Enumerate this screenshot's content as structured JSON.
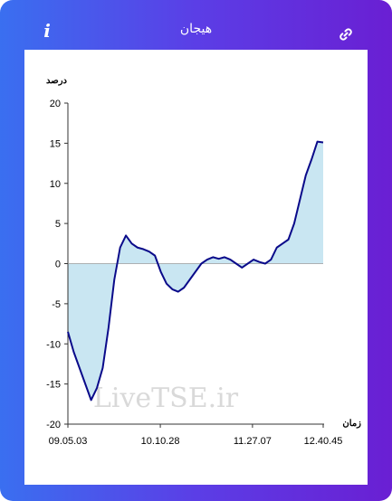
{
  "header": {
    "title": "هیجان",
    "info_icon": "info-icon",
    "link_icon": "link-icon",
    "info_glyph": "i"
  },
  "colors": {
    "line": "#0a0a8a",
    "fill": "#c9e6f2",
    "header_left": "#3a6ff0",
    "header_right": "#6a1fd3"
  },
  "chart_data": {
    "type": "area",
    "title": "",
    "ylabel": "درصد",
    "xlabel": "زمان",
    "ylim": [
      -20,
      20
    ],
    "yticks": [
      "20",
      "15",
      "10",
      "5",
      "0",
      "-5",
      "-10",
      "-15",
      "-20"
    ],
    "x_tick_labels": [
      "09.05.03",
      "10.10.28",
      "11.27.07",
      "12.40.45"
    ],
    "watermark": "LiveTSE.ir",
    "grid": false,
    "series": [
      {
        "values": [
          -8.5,
          -11,
          -13,
          -15,
          -17,
          -15.5,
          -13,
          -8,
          -2,
          2,
          3.5,
          2.5,
          2,
          1.8,
          1.5,
          1,
          -1,
          -2.5,
          -3.2,
          -3.5,
          -3,
          -2,
          -1,
          0,
          0.5,
          0.8,
          0.6,
          0.8,
          0.5,
          0,
          -0.5,
          0,
          0.5,
          0.2,
          0,
          0.5,
          2,
          2.5,
          3,
          5,
          8,
          11,
          13,
          15.2,
          15.1
        ]
      }
    ]
  }
}
